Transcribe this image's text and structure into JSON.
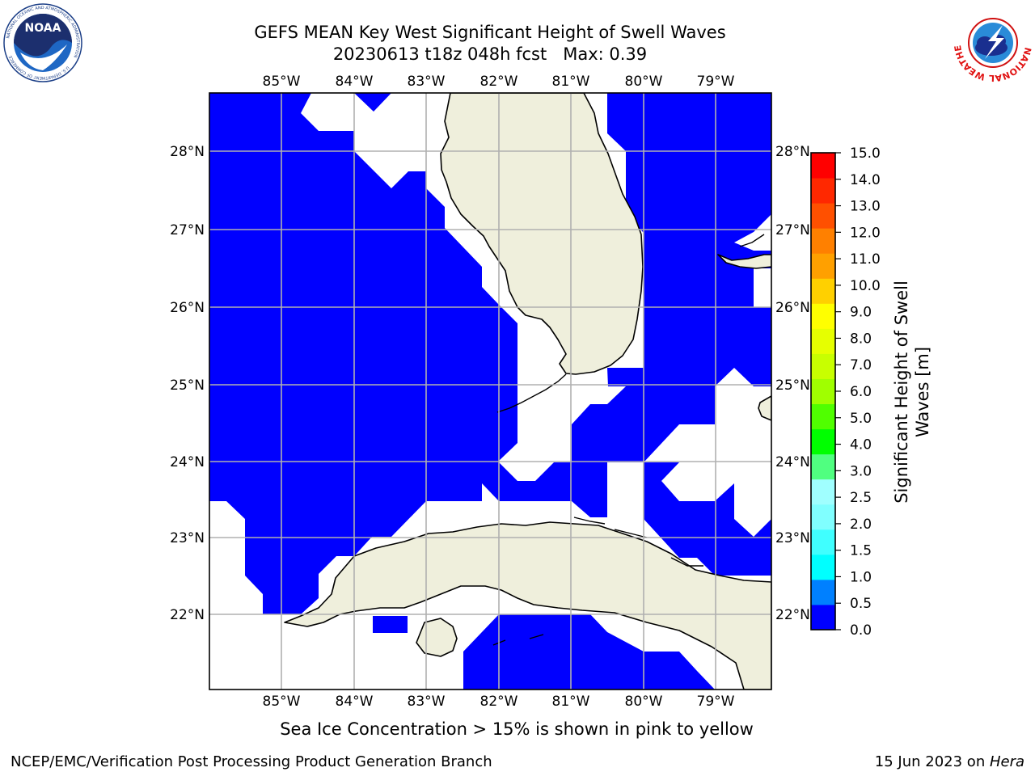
{
  "title": {
    "line1": "GEFS MEAN Key West Significant Height of Swell Waves",
    "line2": "20230613 t18z 048h fcst   Max: 0.39"
  },
  "logos": {
    "noaa": {
      "text": "NOAA",
      "ring_text": "NATIONAL OCEANIC AND ATMOSPHERIC ADMINISTRATION",
      "ring_text_bottom": "U.S. DEPARTMENT OF COMMERCE"
    },
    "nws": {
      "ring_text": "NATIONAL WEATHER SERVICE"
    }
  },
  "map": {
    "lon_labels": [
      "85°W",
      "84°W",
      "83°W",
      "82°W",
      "81°W",
      "80°W",
      "79°W"
    ],
    "lat_labels": [
      "28°N",
      "27°N",
      "26°N",
      "25°N",
      "24°N",
      "23°N",
      "22°N"
    ],
    "lon_range": [
      -86.0,
      -78.25
    ],
    "lat_range": [
      21.0,
      28.78
    ],
    "colors": {
      "swell_low": "#0000ff",
      "land": "#efefdc",
      "no_data": "#ffffff",
      "grid": "#b0b0b0"
    }
  },
  "colorbar": {
    "ticks": [
      "0.0",
      "0.5",
      "1.0",
      "1.5",
      "2.0",
      "2.5",
      "3.0",
      "4.0",
      "5.0",
      "6.0",
      "7.0",
      "8.0",
      "9.0",
      "10.0",
      "11.0",
      "12.0",
      "13.0",
      "14.0",
      "15.0"
    ],
    "colors": [
      "#0000ff",
      "#0080ff",
      "#00ffff",
      "#40ffff",
      "#80ffff",
      "#a0ffff",
      "#50ff80",
      "#00ff00",
      "#50ff00",
      "#a0ff00",
      "#c8ff00",
      "#e6ff00",
      "#ffff00",
      "#ffd000",
      "#ffa000",
      "#ff8000",
      "#ff5000",
      "#ff2800",
      "#ff0000"
    ],
    "label_line1": "Significant Height of Swell",
    "label_line2": "Waves [m]"
  },
  "footer": {
    "note": "Sea Ice Concentration > 15% is shown in pink to yellow",
    "credit": "NCEP/EMC/Verification Post Processing Product Generation Branch",
    "date": "15 Jun 2023 on ",
    "host": "Hera"
  }
}
